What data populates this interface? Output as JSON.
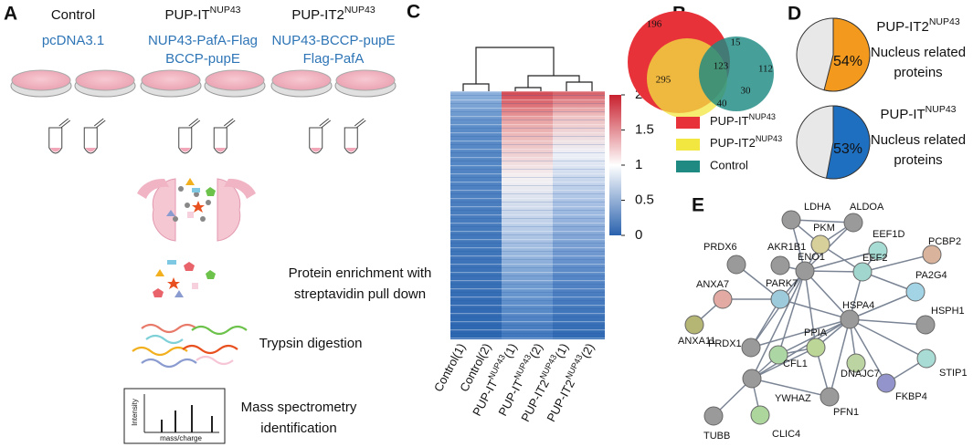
{
  "panel_labels": {
    "a": "A",
    "b": "B",
    "c": "C",
    "d": "D",
    "e": "E"
  },
  "panel_a": {
    "groups": [
      {
        "name": "Control",
        "constructs": [
          "pcDNA3.1"
        ]
      },
      {
        "name": {
          "base": "PUP-IT",
          "sup": "NUP43"
        },
        "constructs": [
          "NUP43-PafA-Flag",
          "BCCP-pupE"
        ]
      },
      {
        "name": {
          "base": "PUP-IT2",
          "sup": "NUP43"
        },
        "constructs": [
          "NUP43-BCCP-pupE",
          "Flag-PafA"
        ]
      }
    ],
    "steps": [
      [
        "Protein enrichment with",
        "streptavidin pull down"
      ],
      [
        "Trypsin digestion"
      ],
      [
        "Mass spectrometry",
        "identification"
      ]
    ],
    "spectrum": {
      "y_label": "Intensity",
      "x_label": "mass/charge"
    }
  },
  "panel_b": {
    "venn_counts": [
      "196",
      "295",
      "123",
      "15",
      "112",
      "30",
      "40"
    ],
    "legend": [
      {
        "base": "PUP-IT",
        "sup": "NUP43"
      },
      {
        "base": "PUP-IT2",
        "sup": "NUP43"
      },
      "Control"
    ]
  },
  "panel_c": {
    "columns": [
      {
        "base": "Control(1)"
      },
      {
        "base": "Control(2)"
      },
      {
        "base": "PUP-IT",
        "sup": "NUP43",
        "suffix": "(1)"
      },
      {
        "base": "PUP-IT",
        "sup": "NUP43",
        "suffix": "(2)"
      },
      {
        "base": "PUP-IT2",
        "sup": "NUP43",
        "suffix": "(1)"
      },
      {
        "base": "PUP-IT2",
        "sup": "NUP43",
        "suffix": "(2)"
      }
    ],
    "colorbar": {
      "lim": [
        0,
        2
      ],
      "ticks": [
        2,
        1.5,
        1,
        0.5,
        0
      ]
    }
  },
  "panel_d": {
    "pies": [
      {
        "title": {
          "base": "PUP-IT2",
          "sup": "NUP43"
        },
        "value": 54,
        "value_label": "54%",
        "caption": [
          "Nucleus related",
          "proteins"
        ],
        "color": "#f39a1e",
        "caption_color": "#f39a1e"
      },
      {
        "title": {
          "base": "PUP-IT",
          "sup": "NUP43"
        },
        "value": 53,
        "value_label": "53%",
        "caption": [
          "Nucleus related",
          "proteins"
        ],
        "color": "#1f6fc1",
        "caption_color": "#2e75b6"
      }
    ]
  },
  "panel_e": {
    "nodes": [
      "LDHA",
      "ALDOA",
      "PKM",
      "EEF1D",
      "PCBP2",
      "PRDX6",
      "AKR1B1",
      "ENO1",
      "EEF2",
      "PA2G4",
      "ANXA7",
      "PARK7",
      "HSPA4",
      "HSPH1",
      "ANXA11",
      "PPIA",
      "PRDX1",
      "CFL1",
      "STIP1",
      "DNAJC7",
      "FKBP4",
      "YWHAZ",
      "PFN1",
      "TUBB",
      "CLIC4"
    ]
  }
}
